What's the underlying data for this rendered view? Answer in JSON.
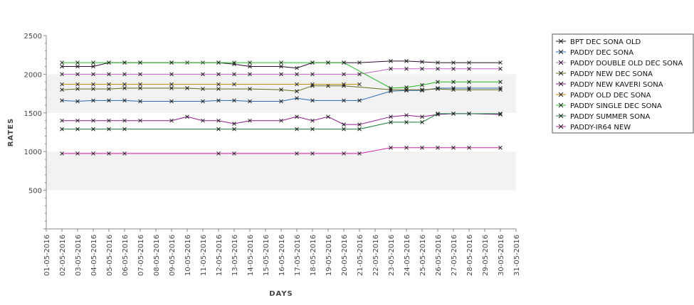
{
  "chart_data": {
    "type": "line",
    "title": "",
    "xlabel": "DAYS",
    "ylabel": "RATES",
    "ylim": [
      0,
      2500
    ],
    "y_ticks": [
      500,
      1000,
      1500,
      2000,
      2500
    ],
    "grid": false,
    "alternating_bands": true,
    "legend_position": "right",
    "x_ticks": [
      "01-05-2016",
      "02-05-2016",
      "03-05-2016",
      "04-05-2016",
      "05-05-2016",
      "06-05-2016",
      "07-05-2016",
      "08-05-2016",
      "09-05-2016",
      "10-05-2016",
      "11-05-2016",
      "12-05-2016",
      "13-05-2016",
      "14-05-2016",
      "15-05-2016",
      "16-05-2016",
      "17-05-2016",
      "18-05-2016",
      "19-05-2016",
      "20-05-2016",
      "21-05-2016",
      "22-05-2016",
      "23-05-2016",
      "24-05-2016",
      "25-05-2016",
      "26-05-2016",
      "27-05-2016",
      "28-05-2016",
      "29-05-2016",
      "30-05-2016",
      "31-05-2016"
    ],
    "series": [
      {
        "name": "BPT DEC SONA OLD",
        "color": "#2a0a2a",
        "x": [
          "02-05-2016",
          "03-05-2016",
          "04-05-2016",
          "05-05-2016",
          "06-05-2016",
          "07-05-2016",
          "09-05-2016",
          "10-05-2016",
          "11-05-2016",
          "12-05-2016",
          "13-05-2016",
          "14-05-2016",
          "16-05-2016",
          "17-05-2016",
          "18-05-2016",
          "19-05-2016",
          "20-05-2016",
          "21-05-2016",
          "23-05-2016",
          "24-05-2016",
          "25-05-2016",
          "26-05-2016",
          "27-05-2016",
          "28-05-2016",
          "30-05-2016"
        ],
        "y": [
          2100,
          2100,
          2100,
          2150,
          2150,
          2150,
          2150,
          2150,
          2150,
          2150,
          2130,
          2100,
          2100,
          2080,
          2150,
          2150,
          2150,
          2150,
          2170,
          2170,
          2160,
          2150,
          2150,
          2150,
          2150
        ]
      },
      {
        "name": "PADDY DEC SONA",
        "color": "#2a6ab0",
        "x": [
          "02-05-2016",
          "03-05-2016",
          "04-05-2016",
          "05-05-2016",
          "06-05-2016",
          "07-05-2016",
          "09-05-2016",
          "11-05-2016",
          "12-05-2016",
          "13-05-2016",
          "14-05-2016",
          "16-05-2016",
          "17-05-2016",
          "18-05-2016",
          "20-05-2016",
          "21-05-2016",
          "23-05-2016",
          "24-05-2016",
          "25-05-2016",
          "26-05-2016",
          "27-05-2016",
          "28-05-2016",
          "30-05-2016"
        ],
        "y": [
          1660,
          1650,
          1660,
          1660,
          1660,
          1650,
          1650,
          1650,
          1660,
          1660,
          1650,
          1650,
          1690,
          1660,
          1660,
          1660,
          1780,
          1790,
          1790,
          1820,
          1820,
          1820,
          1820
        ]
      },
      {
        "name": "PADDY DOUBLE OLD DEC SONA",
        "color": "#c060c0",
        "x": [
          "02-05-2016",
          "03-05-2016",
          "04-05-2016",
          "05-05-2016",
          "06-05-2016",
          "07-05-2016",
          "09-05-2016",
          "11-05-2016",
          "12-05-2016",
          "13-05-2016",
          "14-05-2016",
          "16-05-2016",
          "17-05-2016",
          "18-05-2016",
          "20-05-2016",
          "21-05-2016",
          "23-05-2016",
          "24-05-2016",
          "25-05-2016",
          "26-05-2016",
          "27-05-2016",
          "28-05-2016",
          "30-05-2016"
        ],
        "y": [
          2000,
          2000,
          2000,
          2000,
          2000,
          2000,
          2000,
          2000,
          2000,
          2000,
          2000,
          2000,
          2000,
          2000,
          2000,
          2000,
          2070,
          2070,
          2070,
          2070,
          2070,
          2070,
          2070
        ]
      },
      {
        "name": "PADDY NEW DEC SONA",
        "color": "#6a6a1a",
        "x": [
          "02-05-2016",
          "03-05-2016",
          "04-05-2016",
          "05-05-2016",
          "06-05-2016",
          "07-05-2016",
          "09-05-2016",
          "10-05-2016",
          "11-05-2016",
          "12-05-2016",
          "14-05-2016",
          "16-05-2016",
          "17-05-2016",
          "18-05-2016",
          "19-05-2016",
          "20-05-2016",
          "23-05-2016",
          "24-05-2016",
          "25-05-2016",
          "26-05-2016",
          "27-05-2016",
          "28-05-2016",
          "30-05-2016"
        ],
        "y": [
          1800,
          1810,
          1810,
          1810,
          1820,
          1820,
          1820,
          1820,
          1810,
          1810,
          1810,
          1800,
          1780,
          1850,
          1850,
          1850,
          1800,
          1800,
          1800,
          1810,
          1800,
          1800,
          1800
        ]
      },
      {
        "name": "PADDY NEW KAVERI SONA",
        "color": "#8a1a8a",
        "x": [
          "02-05-2016",
          "03-05-2016",
          "04-05-2016",
          "05-05-2016",
          "06-05-2016",
          "07-05-2016",
          "09-05-2016",
          "10-05-2016",
          "11-05-2016",
          "12-05-2016",
          "13-05-2016",
          "14-05-2016",
          "16-05-2016",
          "17-05-2016",
          "18-05-2016",
          "19-05-2016",
          "20-05-2016",
          "21-05-2016",
          "23-05-2016",
          "24-05-2016",
          "25-05-2016",
          "26-05-2016",
          "27-05-2016",
          "28-05-2016",
          "30-05-2016"
        ],
        "y": [
          1400,
          1400,
          1400,
          1400,
          1400,
          1400,
          1400,
          1450,
          1400,
          1400,
          1360,
          1400,
          1400,
          1450,
          1400,
          1450,
          1350,
          1350,
          1450,
          1470,
          1450,
          1480,
          1490,
          1490,
          1480
        ]
      },
      {
        "name": "PADDY OLD DEC SONA",
        "color": "#c88a00",
        "x": [
          "02-05-2016",
          "03-05-2016",
          "04-05-2016",
          "05-05-2016",
          "06-05-2016",
          "07-05-2016",
          "09-05-2016",
          "12-05-2016",
          "13-05-2016",
          "17-05-2016",
          "18-05-2016",
          "20-05-2016",
          "21-05-2016"
        ],
        "y": [
          1870,
          1870,
          1870,
          1870,
          1870,
          1870,
          1870,
          1870,
          1870,
          1870,
          1870,
          1870,
          1870
        ]
      },
      {
        "name": "PADDY SINGLE DEC SONA",
        "color": "#22b822",
        "x": [
          "02-05-2016",
          "03-05-2016",
          "04-05-2016",
          "05-05-2016",
          "06-05-2016",
          "07-05-2016",
          "09-05-2016",
          "12-05-2016",
          "13-05-2016",
          "14-05-2016",
          "16-05-2016",
          "18-05-2016",
          "19-05-2016",
          "20-05-2016",
          "23-05-2016",
          "24-05-2016",
          "25-05-2016",
          "26-05-2016",
          "27-05-2016",
          "28-05-2016",
          "30-05-2016"
        ],
        "y": [
          2150,
          2150,
          2150,
          2150,
          2150,
          2150,
          2150,
          2150,
          2150,
          2150,
          2150,
          2150,
          2150,
          2150,
          1820,
          1830,
          1860,
          1900,
          1900,
          1900,
          1900
        ]
      },
      {
        "name": "PADDY SUMMER SONA",
        "color": "#1a7a3a",
        "x": [
          "02-05-2016",
          "03-05-2016",
          "04-05-2016",
          "05-05-2016",
          "06-05-2016",
          "12-05-2016",
          "13-05-2016",
          "17-05-2016",
          "18-05-2016",
          "20-05-2016",
          "21-05-2016",
          "23-05-2016",
          "24-05-2016",
          "25-05-2016",
          "26-05-2016",
          "27-05-2016",
          "28-05-2016",
          "30-05-2016"
        ],
        "y": [
          1290,
          1290,
          1290,
          1290,
          1290,
          1290,
          1290,
          1290,
          1290,
          1290,
          1290,
          1380,
          1380,
          1380,
          1490,
          1490,
          1490,
          1490
        ]
      },
      {
        "name": "PADDY-IR64 NEW",
        "color": "#d020a0",
        "x": [
          "02-05-2016",
          "03-05-2016",
          "04-05-2016",
          "05-05-2016",
          "06-05-2016",
          "12-05-2016",
          "13-05-2016",
          "17-05-2016",
          "18-05-2016",
          "20-05-2016",
          "21-05-2016",
          "23-05-2016",
          "24-05-2016",
          "25-05-2016",
          "26-05-2016",
          "27-05-2016",
          "28-05-2016",
          "30-05-2016"
        ],
        "y": [
          975,
          975,
          975,
          975,
          975,
          975,
          975,
          975,
          975,
          975,
          975,
          1050,
          1050,
          1050,
          1050,
          1050,
          1050,
          1050
        ]
      }
    ]
  }
}
